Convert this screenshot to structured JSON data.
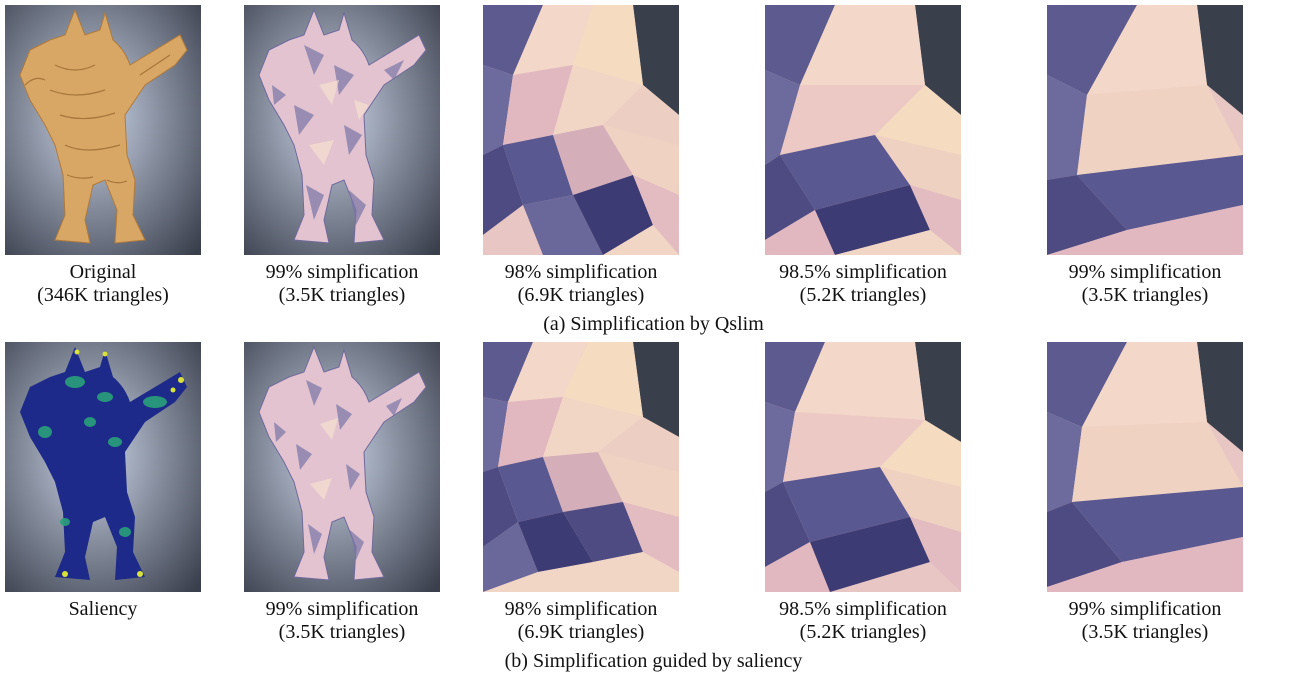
{
  "figure": {
    "rows": [
      {
        "subcaption": "(a) Simplification by Qslim",
        "panels": [
          {
            "line1": "Original",
            "line2": "(346K triangles)",
            "render": "original-shaded"
          },
          {
            "line1": "99% simplification",
            "line2": "(3.5K triangles)",
            "render": "simplified-full"
          },
          {
            "line1": "98% simplification",
            "line2": "(6.9K triangles)",
            "render": "closeup"
          },
          {
            "line1": "98.5% simplification",
            "line2": "(5.2K triangles)",
            "render": "closeup"
          },
          {
            "line1": "99% simplification",
            "line2": "(3.5K triangles)",
            "render": "closeup"
          }
        ]
      },
      {
        "subcaption": "(b) Simplification guided by saliency",
        "panels": [
          {
            "line1": "Saliency",
            "line2": "",
            "render": "saliency-map"
          },
          {
            "line1": "99% simplification",
            "line2": "(3.5K triangles)",
            "render": "simplified-full"
          },
          {
            "line1": "98% simplification",
            "line2": "(6.9K triangles)",
            "render": "closeup"
          },
          {
            "line1": "98.5% simplification",
            "line2": "(5.2K triangles)",
            "render": "closeup"
          },
          {
            "line1": "99% simplification",
            "line2": "(3.5K triangles)",
            "render": "closeup"
          }
        ]
      }
    ],
    "colors": {
      "background_light": "#c9d3e6",
      "background_dark": "#3a3f4c",
      "mesh_light": "#f3d7c8",
      "mesh_pink": "#e2b8c0",
      "mesh_dark": "#5c5a8e",
      "original_gold": "#d8a766",
      "saliency_base": "#1d2a8a",
      "saliency_mid": "#2aa07a",
      "saliency_high": "#d8e23a"
    }
  }
}
